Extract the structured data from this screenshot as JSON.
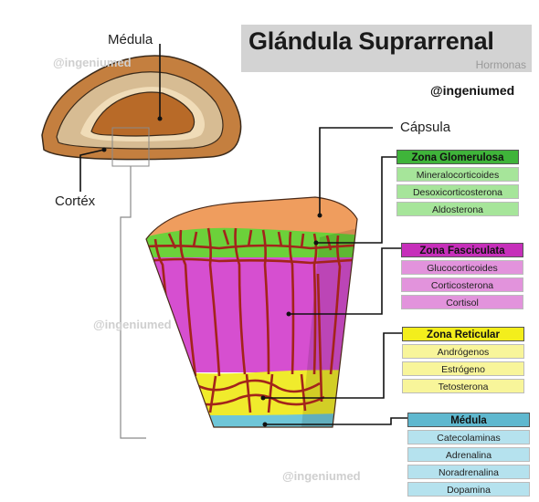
{
  "header": {
    "title": "Glándula Suprarrenal",
    "subtitle": "Hormonas",
    "handle": "@ingeniumed"
  },
  "watermarks": [
    "@ingeniumed",
    "@ingeniumed",
    "@ingeniumed"
  ],
  "labels": {
    "medula": "Médula",
    "cortex": "Cortéx",
    "capsula": "Cápsula"
  },
  "zones": [
    {
      "title": "Zona Glomerulosa",
      "title_color": "#3fb43a",
      "item_color": "#a6e59a",
      "items": [
        "Mineralocorticoides",
        "Desoxicorticosterona",
        "Aldosterona"
      ]
    },
    {
      "title": "Zona Fasciculata",
      "title_color": "#c62fba",
      "item_color": "#e293dc",
      "items": [
        "Glucocorticoides",
        "Corticosterona",
        "Cortisol"
      ]
    },
    {
      "title": "Zona Reticular",
      "title_color": "#f3ee1c",
      "item_color": "#f8f59a",
      "items": [
        "Andrógenos",
        "Estrógeno",
        "Tetosterona"
      ]
    },
    {
      "title": "Médula",
      "title_color": "#5fb8cf",
      "item_color": "#b5e2ee",
      "items": [
        "Catecolaminas",
        "Adrenalina",
        "Noradrenalina",
        "Dopamina"
      ]
    }
  ],
  "colors": {
    "capsule": "#ef9d5e",
    "glomerulosa": "#6cd13a",
    "fasciculata": "#d64fd0",
    "reticular": "#f0eb2c",
    "medulla": "#6fc6d8",
    "vessels": "#a3241b",
    "gland_outer": "#c47f3f",
    "gland_cortex": "#d7bc93",
    "gland_medulla": "#b86a28"
  }
}
